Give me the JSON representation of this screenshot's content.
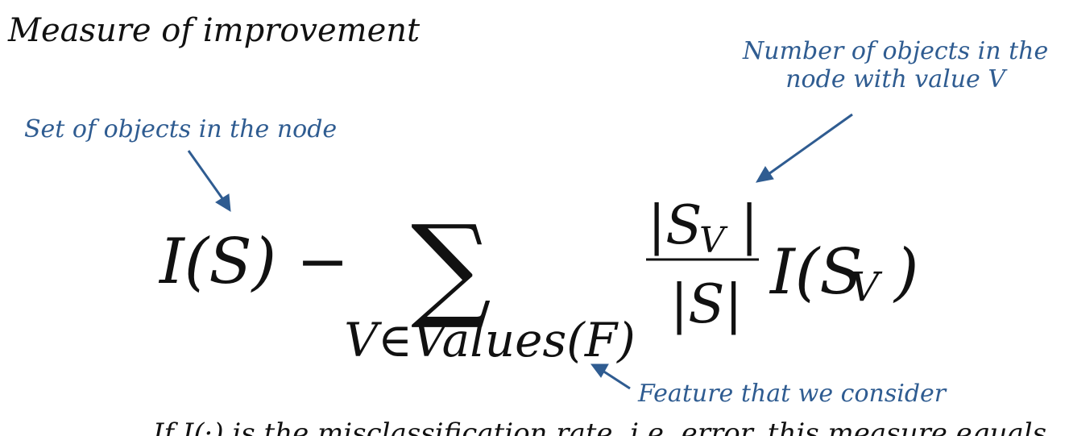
{
  "slide": {
    "title": "Measure of improvement",
    "annotations": {
      "set_of_objects": "Set of objects in the node",
      "number_of_objects_line1": "Number of objects in the",
      "number_of_objects_line2": "node with value V",
      "feature": "Feature that we consider"
    },
    "formula": {
      "left_term": "I(S) −",
      "sum_symbol": "∑",
      "sum_index": "V∈Values(F)",
      "numerator": "|S",
      "numerator_sub": "V",
      "numerator_close": "|",
      "denominator": "|S|",
      "right_term": "I(S",
      "right_term_sub": "V",
      "right_term_close": ")"
    },
    "bottom_text": "If I(·) is the misclassification rate, i.e. error, this measure equals"
  }
}
